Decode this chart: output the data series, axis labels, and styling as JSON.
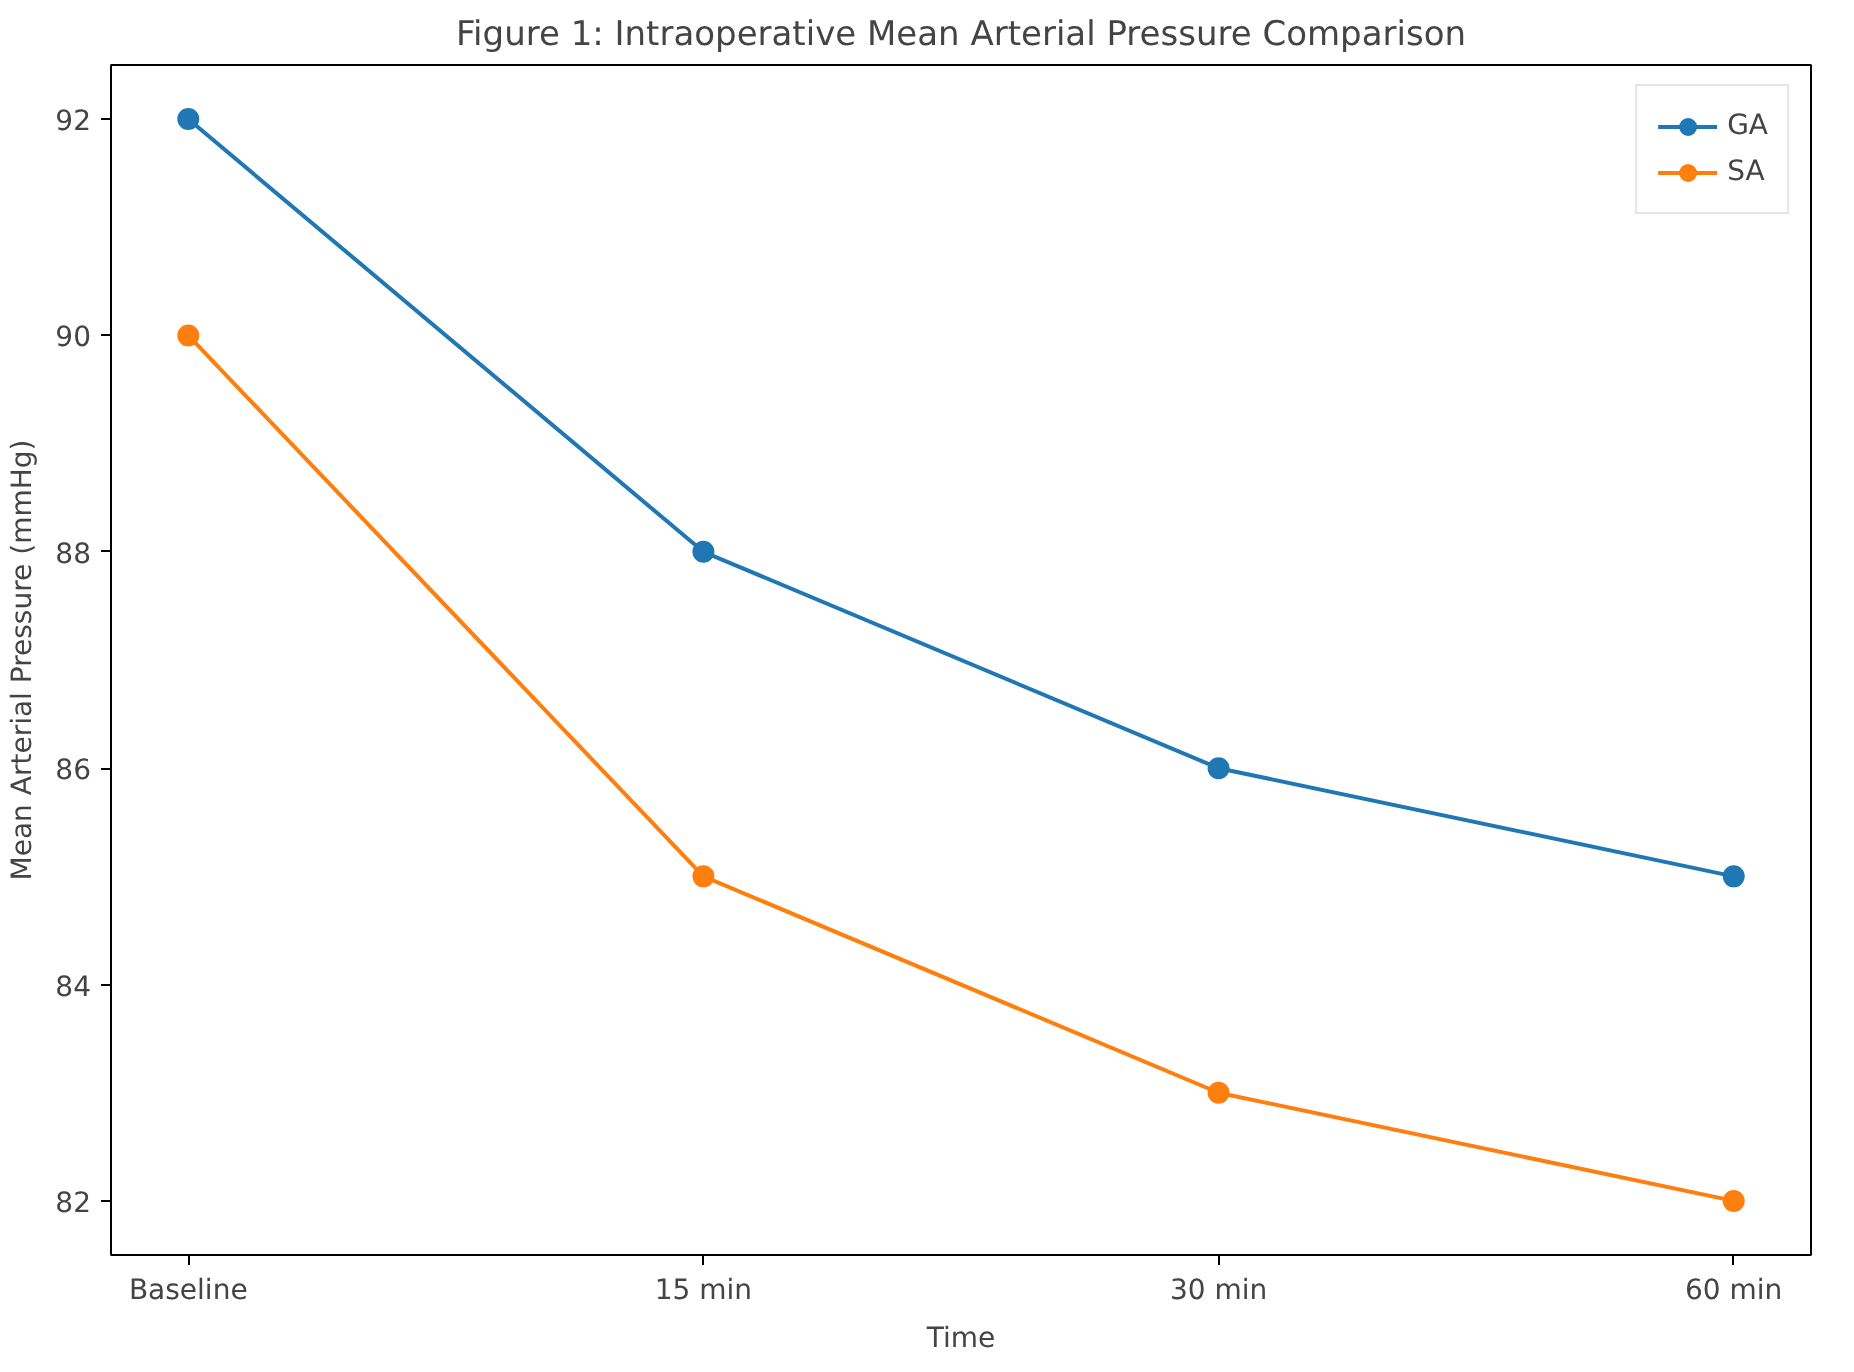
{
  "chart_data": {
    "type": "line",
    "title": "Figure 1: Intraoperative Mean Arterial Pressure Comparison",
    "xlabel": "Time",
    "ylabel": "Mean Arterial Pressure (mmHg)",
    "categories": [
      "Baseline",
      "15 min",
      "30 min",
      "60 min"
    ],
    "series": [
      {
        "name": "GA",
        "color": "#1f77b4",
        "values": [
          92,
          88,
          86,
          85
        ]
      },
      {
        "name": "SA",
        "color": "#ff7f0e",
        "values": [
          90,
          85,
          83,
          82
        ]
      }
    ],
    "ylim": [
      81.5,
      92.5
    ],
    "yticks": [
      82,
      84,
      86,
      88,
      90,
      92
    ],
    "grid": false,
    "legend": "top right",
    "marker": "circle",
    "line_style": "solid"
  }
}
